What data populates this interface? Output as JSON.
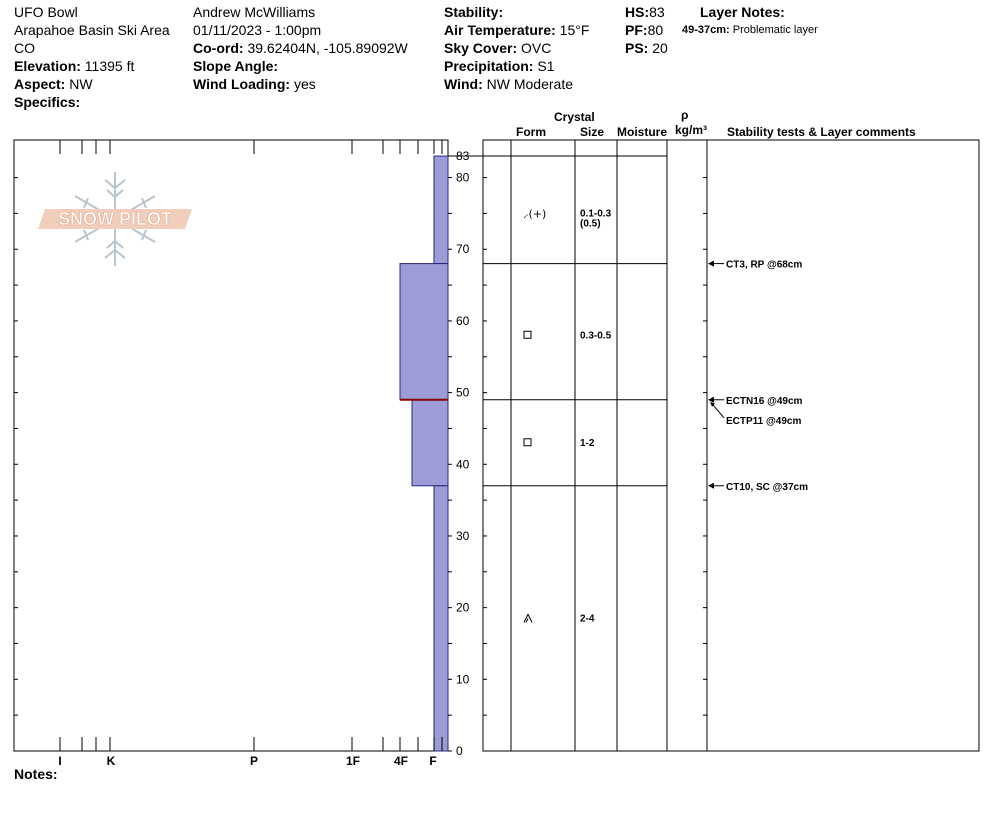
{
  "site": {
    "name": "UFO Bowl",
    "area": "Arapahoe Basin Ski Area",
    "state": "CO",
    "elevation_label": "Elevation:",
    "elevation": "11395 ft",
    "aspect_label": "Aspect:",
    "aspect": "NW",
    "specifics_label": "Specifics:"
  },
  "observer": {
    "name": "Andrew McWilliams",
    "datetime": "01/11/2023 - 1:00pm",
    "coord_label": "Co-ord:",
    "coord": "39.62404N, -105.89092W",
    "slope_label": "Slope Angle:",
    "wind_loading_label": "Wind Loading:",
    "wind_loading": "yes"
  },
  "weather": {
    "stability_label": "Stability:",
    "air_temp_label": "Air Temperature:",
    "air_temp": "15°F",
    "sky_label": "Sky Cover:",
    "sky": "OVC",
    "precip_label": "Precipitation:",
    "precip": "S1",
    "wind_label": "Wind:",
    "wind": "NW Moderate"
  },
  "depths": {
    "hs_label": "HS:",
    "hs": "83",
    "pf_label": "PF:",
    "pf": "80",
    "ps_label": "PS:",
    "ps": "20"
  },
  "layer_notes": {
    "title": "Layer Notes:",
    "range": "49-37cm:",
    "note": "Problematic layer"
  },
  "logo_text": "SNOW PILOT",
  "columns": {
    "crystal": "Crystal",
    "form": "Form",
    "size": "Size",
    "moisture": "Moisture",
    "rho": "ρ",
    "density_unit": "kg/m³",
    "comments": "Stability tests & Layer comments"
  },
  "notes_label": "Notes:",
  "colors": {
    "fill": "#9d9cd8",
    "stroke": "#2a2a7a",
    "interface": "#8b0000"
  },
  "chart_data": {
    "type": "snow-profile",
    "y_axis": {
      "min": 0,
      "max": 83,
      "ticks": [
        0,
        10,
        20,
        30,
        40,
        50,
        60,
        70,
        80
      ],
      "top_label": "83"
    },
    "hardness_scale": [
      "I",
      "K",
      "P",
      "1F",
      "4F",
      "F"
    ],
    "hardness_layers": [
      {
        "bottom": 68,
        "top": 83,
        "hardness": "F"
      },
      {
        "bottom": 49,
        "top": 68,
        "hardness": "4F"
      },
      {
        "bottom": 37,
        "top": 49,
        "hardness": "4F-F"
      },
      {
        "bottom": 0,
        "top": 37,
        "hardness": "F"
      }
    ],
    "interface_depth": 49,
    "layers": [
      {
        "top": 83,
        "bottom": 68,
        "form_symbol": "⸝(+)",
        "size": "0.1-0.3",
        "size2": "(0.5)",
        "mid": 75
      },
      {
        "top": 68,
        "bottom": 49,
        "form_symbol": "□",
        "size": "0.3-0.5",
        "size2": "",
        "mid": 58
      },
      {
        "top": 49,
        "bottom": 37,
        "form_symbol": "□",
        "size": "1-2",
        "size2": "",
        "mid": 43
      },
      {
        "top": 37,
        "bottom": 0,
        "form_symbol": "^",
        "size": "2-4",
        "size2": "",
        "mid": 18.5
      }
    ],
    "stability_tests": [
      {
        "depth": 68,
        "text": "CT3, RP @68cm"
      },
      {
        "depth": 49,
        "text": "ECTN16 @49cm"
      },
      {
        "depth": 49,
        "text": "ECTP11 @49cm",
        "offset": true
      },
      {
        "depth": 37,
        "text": "CT10, SC @37cm"
      }
    ]
  }
}
